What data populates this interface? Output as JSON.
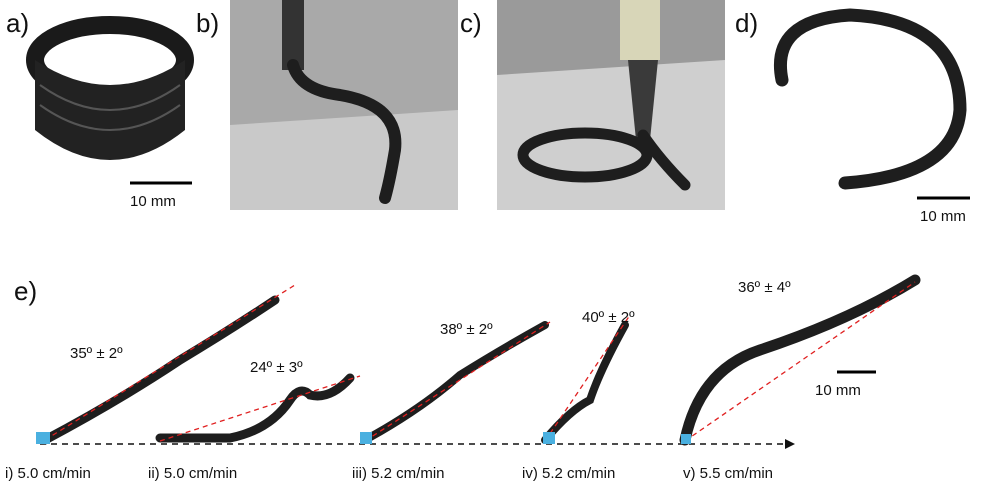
{
  "panels": [
    {
      "label": "a)",
      "scale_bar": "10 mm"
    },
    {
      "label": "b)"
    },
    {
      "label": "c)"
    },
    {
      "label": "d)",
      "scale_bar": "10 mm"
    },
    {
      "label": "e)",
      "scale_bar": "10 mm",
      "samples": [
        {
          "angle": "35º ± 2º",
          "speed": "i) 5.0 cm/min"
        },
        {
          "angle": "24º ± 3º",
          "speed": "ii) 5.0 cm/min"
        },
        {
          "angle": "38º ± 2º",
          "speed": "iii) 5.2 cm/min"
        },
        {
          "angle": "40º ± 2º",
          "speed": "iv) 5.2 cm/min"
        },
        {
          "angle": "36º ± 4º",
          "speed": "v) 5.5 cm/min"
        }
      ]
    }
  ]
}
